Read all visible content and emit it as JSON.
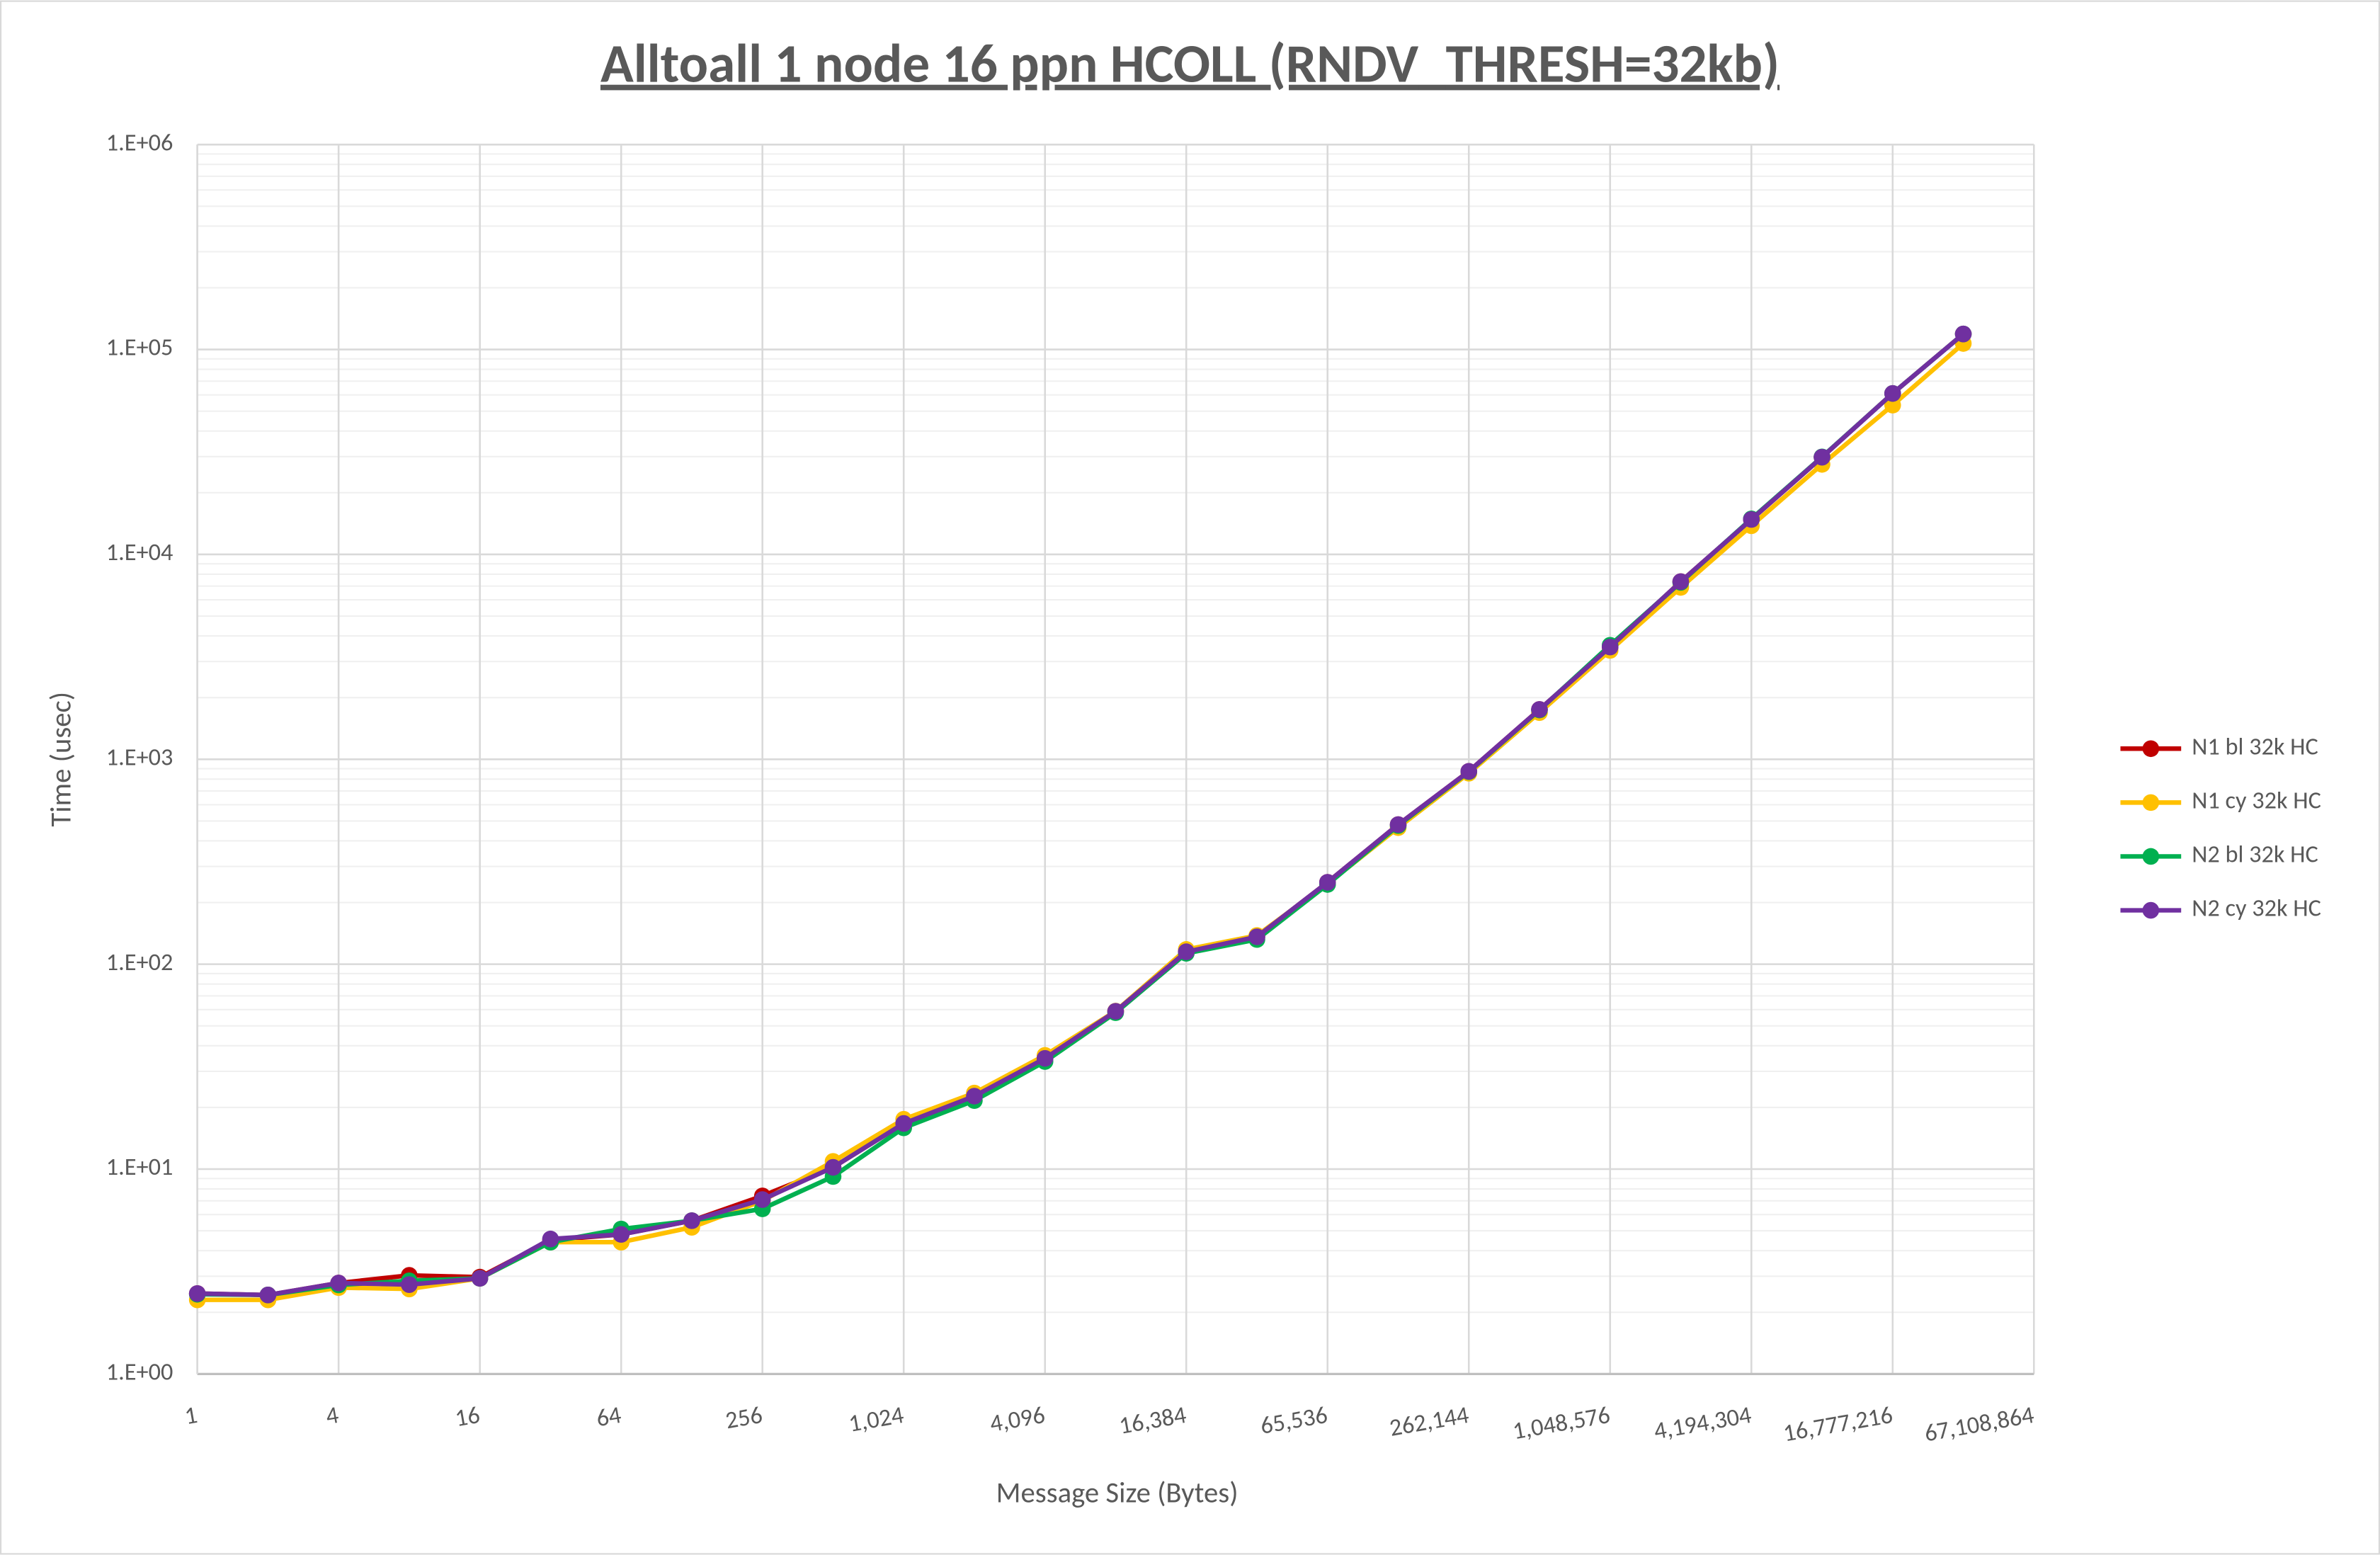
{
  "chart_data": {
    "type": "line",
    "title": "Alltoall 1 node 16 ppn HCOLL (RNDV_THRESH=32kb)",
    "x_label": "Message Size (Bytes)",
    "y_label": "Time (usec)",
    "x": [
      1,
      2,
      4,
      8,
      16,
      32,
      64,
      128,
      256,
      512,
      1024,
      2048,
      4096,
      8192,
      16384,
      32768,
      65536,
      131072,
      262144,
      524288,
      1048576,
      2097152,
      4194304,
      8388608,
      16777216,
      33554432
    ],
    "series": [
      {
        "name": "N1 bl 32k HC",
        "color": "#c00000",
        "values": [
          2.47,
          2.43,
          2.78,
          3.03,
          2.97,
          4.5,
          4.8,
          5.6,
          7.4,
          10.2,
          16.7,
          22.7,
          34.7,
          58.9,
          115,
          136,
          251,
          480,
          873,
          1750,
          3530,
          7360,
          14800,
          29800,
          61000,
          119000
        ]
      },
      {
        "name": "N1 cy 32k HC",
        "color": "#ffc000",
        "values": [
          2.3,
          2.3,
          2.64,
          2.6,
          2.93,
          4.4,
          4.4,
          5.2,
          7.0,
          10.9,
          17.5,
          23.5,
          35.9,
          59,
          118,
          138,
          247,
          464,
          855,
          1690,
          3400,
          6900,
          13800,
          27500,
          53500,
          107000
        ]
      },
      {
        "name": "N2 bl 32k HC",
        "color": "#00b050",
        "values": [
          2.45,
          2.43,
          2.72,
          2.85,
          2.93,
          4.4,
          5.1,
          5.6,
          6.4,
          9.2,
          15.9,
          21.6,
          33.5,
          58,
          113,
          132,
          245,
          475,
          870,
          1740,
          3600,
          7300,
          14900,
          29900,
          61000,
          119000
        ]
      },
      {
        "name": "N2 cy 32k HC",
        "color": "#7030a0",
        "values": [
          2.47,
          2.43,
          2.78,
          2.73,
          2.93,
          4.56,
          4.8,
          5.6,
          7.1,
          10.2,
          16.7,
          22.7,
          34.7,
          58.9,
          115,
          136,
          251,
          480,
          873,
          1750,
          3530,
          7360,
          14800,
          29800,
          61000,
          119000
        ]
      }
    ],
    "xscale": "log2",
    "yscale": "log",
    "xlim": [
      1,
      67108864
    ],
    "ylim": [
      1,
      1000000
    ],
    "xticks": [
      1,
      4,
      16,
      64,
      256,
      {
        "value": 1024,
        "label": "1,024"
      },
      {
        "value": 4096,
        "label": "4,096"
      },
      {
        "value": 16384,
        "label": "16,384"
      },
      {
        "value": 65536,
        "label": "65,536"
      },
      {
        "value": 262144,
        "label": "262,144"
      },
      {
        "value": 1048576,
        "label": "1,048,576"
      },
      {
        "value": 4194304,
        "label": "4,194,304"
      },
      {
        "value": 16777216,
        "label": "16,777,216"
      },
      {
        "value": 67108864,
        "label": "67,108,864"
      }
    ],
    "yticks": [
      {
        "value": 1,
        "label": "1.E+00"
      },
      {
        "value": 10,
        "label": "1.E+01"
      },
      {
        "value": 100,
        "label": "1.E+02"
      },
      {
        "value": 1000,
        "label": "1.E+03"
      },
      {
        "value": 10000,
        "label": "1.E+04"
      },
      {
        "value": 100000,
        "label": "1.E+05"
      },
      {
        "value": 1000000,
        "label": "1.E+06"
      }
    ],
    "grid": true,
    "minor_grid": true,
    "legend": "right"
  }
}
